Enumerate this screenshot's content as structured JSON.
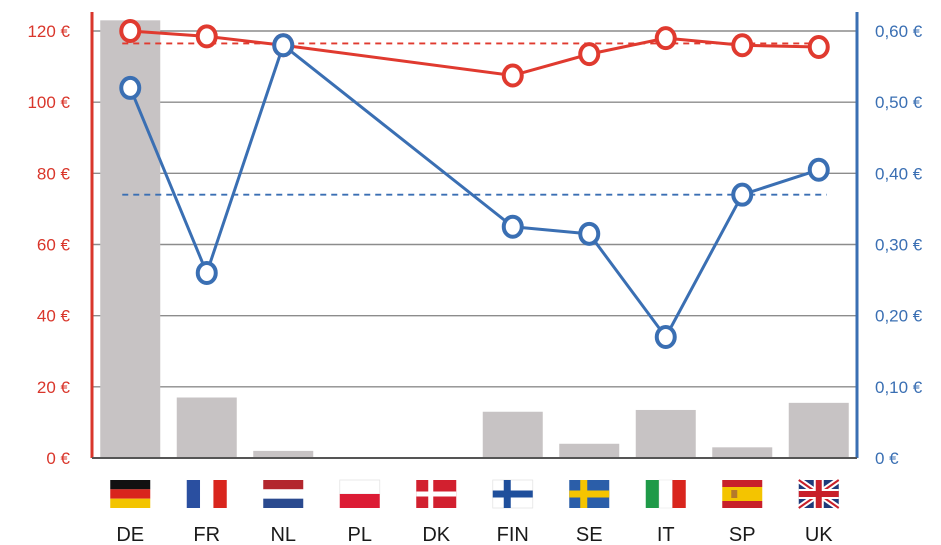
{
  "chart_data": {
    "type": "bar+line",
    "categories": [
      "DE",
      "FR",
      "NL",
      "PL",
      "DK",
      "FIN",
      "SE",
      "IT",
      "SP",
      "UK"
    ],
    "flags": [
      "de-flag-icon",
      "fr-flag-icon",
      "nl-flag-icon",
      "pl-flag-icon",
      "dk-flag-icon",
      "fin-flag-icon",
      "se-flag-icon",
      "it-flag-icon",
      "sp-flag-icon",
      "uk-flag-icon"
    ],
    "bars": {
      "axis": "left",
      "values": [
        123,
        17,
        2,
        0,
        0,
        13,
        4,
        13.5,
        3,
        15.5
      ],
      "color": "#c7c3c4"
    },
    "series": [
      {
        "axis": "left",
        "color": "#e03a2f",
        "values": [
          120,
          118.5,
          116,
          null,
          null,
          107.5,
          113.5,
          118,
          116,
          115.5
        ],
        "average": 116.5
      },
      {
        "axis": "right",
        "color": "#3a6fb3",
        "values": [
          0.52,
          0.26,
          0.58,
          null,
          null,
          0.325,
          0.315,
          0.17,
          0.37,
          0.405
        ],
        "average": 0.37
      }
    ],
    "y_left": {
      "range": [
        0,
        120
      ],
      "ticks": [
        0,
        20,
        40,
        60,
        80,
        100,
        120
      ],
      "labels": [
        "0 €",
        "20 €",
        "40 €",
        "60 €",
        "80 €",
        "100 €",
        "120 €"
      ],
      "color": "#d9362b"
    },
    "y_right": {
      "range": [
        0,
        0.6
      ],
      "ticks": [
        0,
        0.1,
        0.2,
        0.3,
        0.4,
        0.5,
        0.6
      ],
      "labels": [
        "0 €",
        "0,10 €",
        "0,20 €",
        "0,30 €",
        "0,40 €",
        "0,50 €",
        "0,60 €"
      ],
      "color": "#3a6fb3"
    },
    "grid": true,
    "gridColor": "#8c8c8c"
  }
}
